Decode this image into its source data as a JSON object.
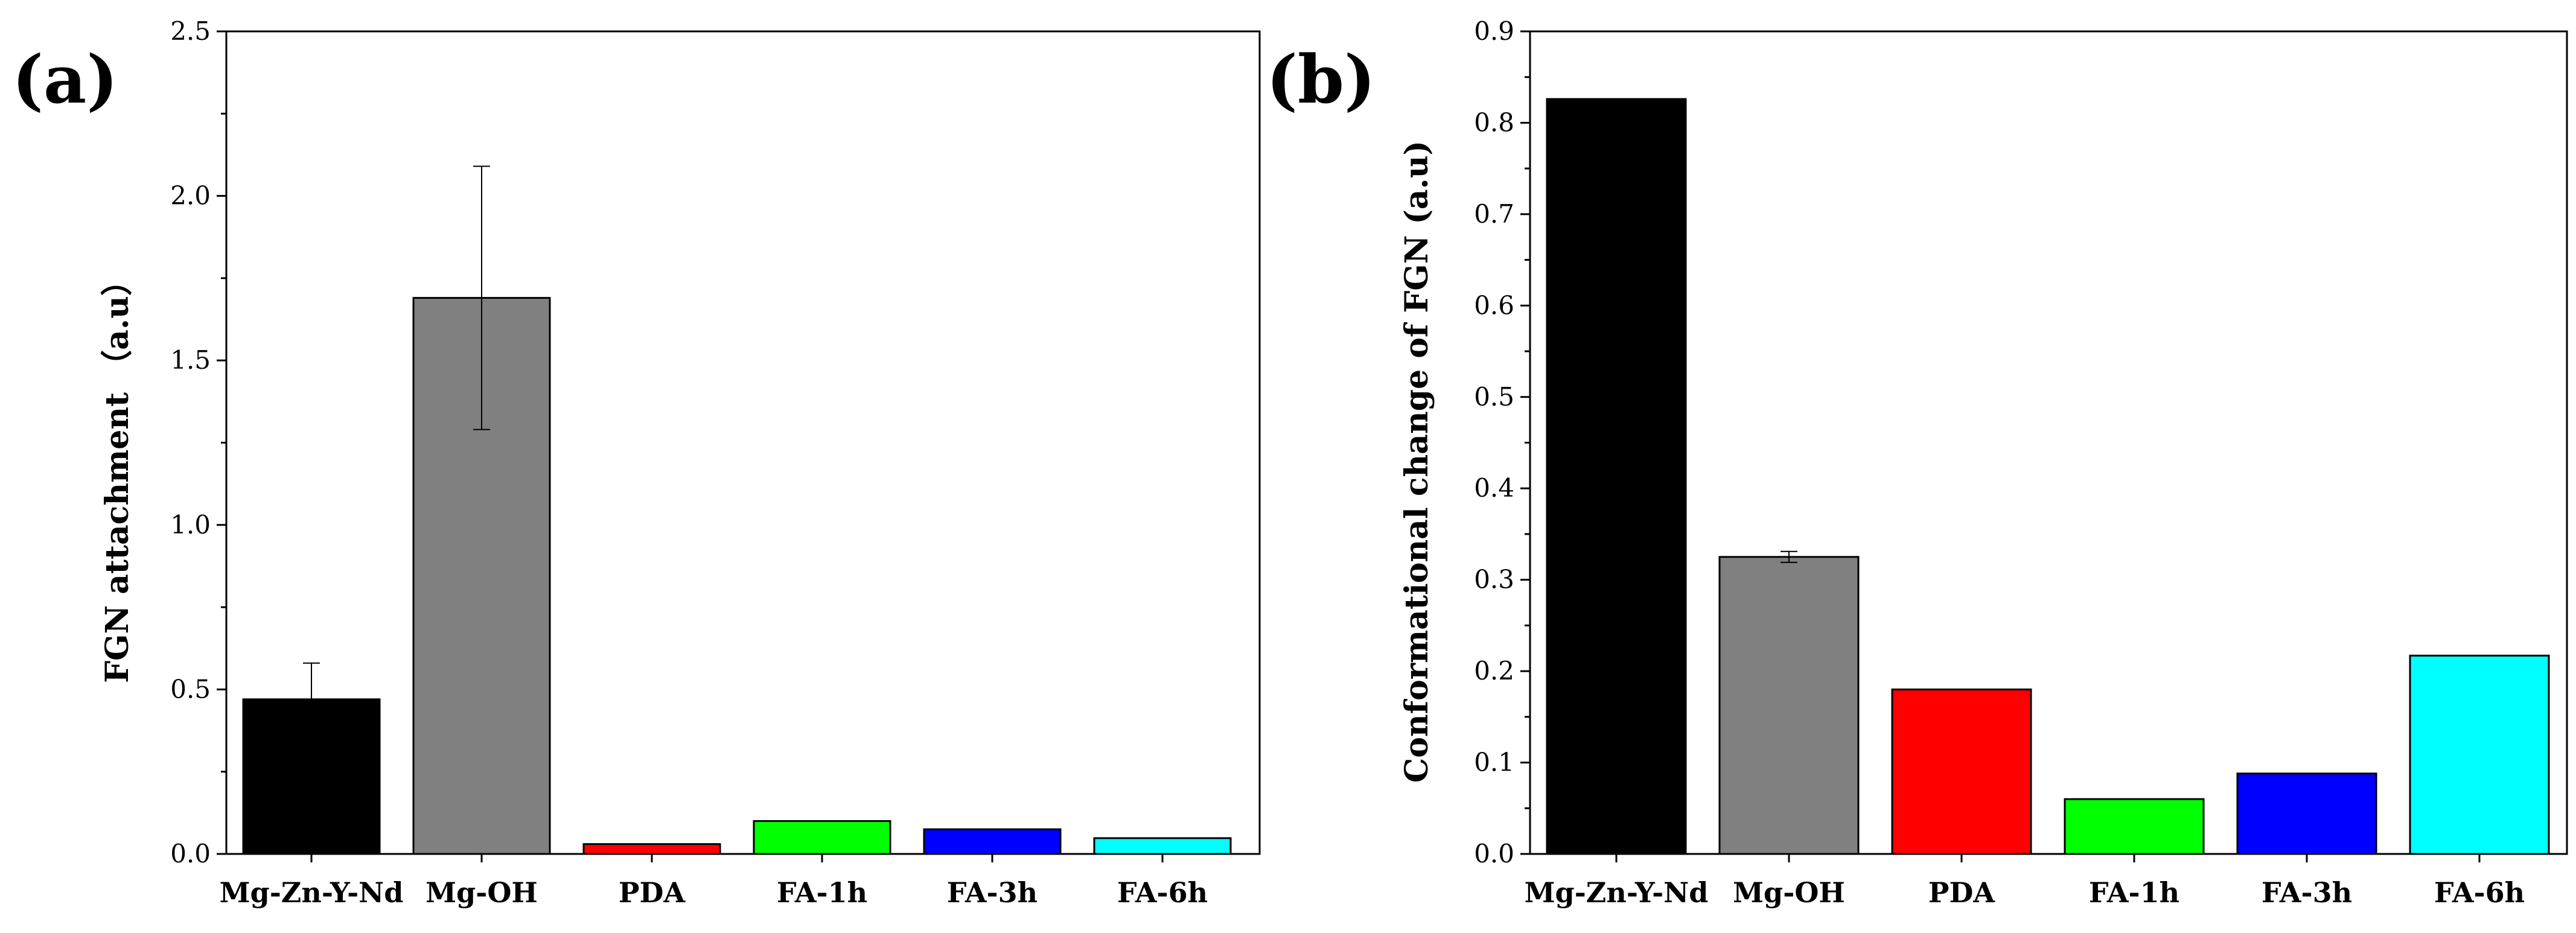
{
  "figure": {
    "panels": [
      {
        "label": "(a)",
        "ylabel": "FGN attachment （a.u）",
        "yticks": [
          "0.0",
          "0.5",
          "1.0",
          "1.5",
          "2.0",
          "2.5"
        ]
      },
      {
        "label": "(b)",
        "ylabel": "Conformational change of FGN (a.u)",
        "yticks": [
          "0.0",
          "0.1",
          "0.2",
          "0.3",
          "0.4",
          "0.5",
          "0.6",
          "0.7",
          "0.8",
          "0.9"
        ]
      }
    ]
  },
  "chart_data": [
    {
      "type": "bar",
      "title": "",
      "panel": "(a)",
      "categories": [
        "Mg-Zn-Y-Nd",
        "Mg-OH",
        "PDA",
        "FA-1h",
        "FA-3h",
        "FA-6h"
      ],
      "values": [
        0.47,
        1.69,
        0.03,
        0.1,
        0.075,
        0.048
      ],
      "errors": [
        0.11,
        0.4,
        0,
        0,
        0,
        0
      ],
      "colors": [
        "#000000",
        "#808080",
        "#ff0000",
        "#00ff00",
        "#0000ff",
        "#00ffff"
      ],
      "xlabel": "",
      "ylabel": "FGN attachment （a.u）",
      "ylim": [
        0,
        2.5
      ],
      "ytick_step": 0.5,
      "grid": false
    },
    {
      "type": "bar",
      "title": "",
      "panel": "(b)",
      "categories": [
        "Mg-Zn-Y-Nd",
        "Mg-OH",
        "PDA",
        "FA-1h",
        "FA-3h",
        "FA-6h"
      ],
      "values": [
        0.826,
        0.325,
        0.18,
        0.06,
        0.088,
        0.217
      ],
      "errors": [
        0,
        0.006,
        0,
        0,
        0,
        0
      ],
      "colors": [
        "#000000",
        "#808080",
        "#ff0000",
        "#00ff00",
        "#0000ff",
        "#00ffff"
      ],
      "xlabel": "",
      "ylabel": "Conformational change of FGN (a.u)",
      "ylim": [
        0,
        0.9
      ],
      "ytick_step": 0.1,
      "grid": false
    }
  ]
}
